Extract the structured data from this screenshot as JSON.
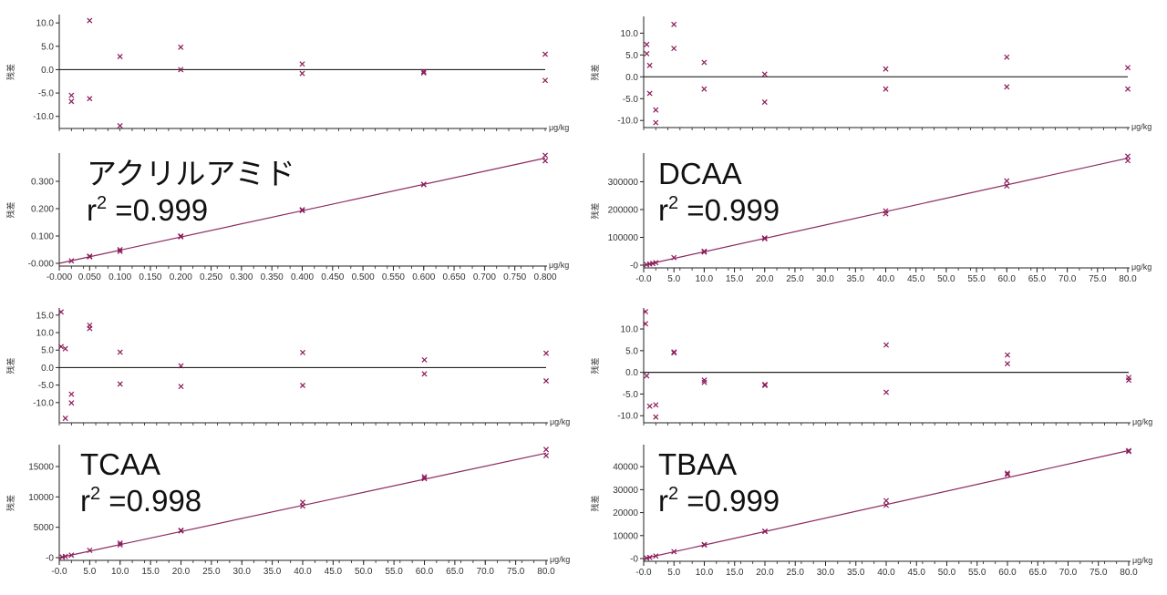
{
  "colors": {
    "marker": "#8B1A5A",
    "line": "#8B2A62",
    "axis": "#222222",
    "zero": "#222222",
    "text": "#111111"
  },
  "chart_data": [
    {
      "id": "acrylamide-residual",
      "type": "scatter",
      "ylabel": "残差",
      "unit_label": "μg/kg",
      "x_ticks": [],
      "y_ticks": [
        "10.0",
        "5.0",
        "0.0",
        "-5.0",
        "-10.0"
      ],
      "y_tick_values": [
        10,
        5,
        0,
        -5,
        -10
      ],
      "xlim": [
        0.0,
        0.8
      ],
      "ylim": [
        -12,
        11
      ],
      "zero_line": true,
      "points": [
        {
          "x": 0.02,
          "y": -5.5
        },
        {
          "x": 0.02,
          "y": -6.8
        },
        {
          "x": 0.05,
          "y": 10.5
        },
        {
          "x": 0.05,
          "y": -6.2
        },
        {
          "x": 0.1,
          "y": 2.8
        },
        {
          "x": 0.1,
          "y": -12.0
        },
        {
          "x": 0.2,
          "y": 4.8
        },
        {
          "x": 0.2,
          "y": 0.0
        },
        {
          "x": 0.4,
          "y": 1.2
        },
        {
          "x": 0.4,
          "y": -0.8
        },
        {
          "x": 0.6,
          "y": -0.4
        },
        {
          "x": 0.6,
          "y": -0.7
        },
        {
          "x": 0.8,
          "y": 3.3
        },
        {
          "x": 0.8,
          "y": -2.3
        }
      ]
    },
    {
      "id": "acrylamide-calibration",
      "type": "scatter",
      "annotation": "アクリルアミド",
      "r2_prefix": "r",
      "r2_sup": "2",
      "r2_value": " =0.999",
      "ylabel": "残差",
      "unit_label": "μg/kg",
      "x_ticks": [
        "-0.000",
        "0.050",
        "0.100",
        "0.150",
        "0.200",
        "0.250",
        "0.300",
        "0.350",
        "0.400",
        "0.450",
        "0.500",
        "0.550",
        "0.600",
        "0.650",
        "0.700",
        "0.750",
        "0.800"
      ],
      "x_tick_values": [
        0,
        0.05,
        0.1,
        0.15,
        0.2,
        0.25,
        0.3,
        0.35,
        0.4,
        0.45,
        0.5,
        0.55,
        0.6,
        0.65,
        0.7,
        0.75,
        0.8
      ],
      "y_ticks": [
        "0.300",
        "0.200",
        "0.100",
        "-0.000"
      ],
      "y_tick_values": [
        0.3,
        0.2,
        0.1,
        0.0
      ],
      "xlim": [
        0.0,
        0.8
      ],
      "ylim": [
        0.0,
        0.39
      ],
      "fit": {
        "x0": 0.0,
        "y0": 0.0,
        "x1": 0.8,
        "y1": 0.385
      },
      "points": [
        {
          "x": 0.02,
          "y": 0.009
        },
        {
          "x": 0.05,
          "y": 0.024
        },
        {
          "x": 0.05,
          "y": 0.026
        },
        {
          "x": 0.1,
          "y": 0.044
        },
        {
          "x": 0.1,
          "y": 0.05
        },
        {
          "x": 0.2,
          "y": 0.097
        },
        {
          "x": 0.2,
          "y": 0.1
        },
        {
          "x": 0.4,
          "y": 0.193
        },
        {
          "x": 0.4,
          "y": 0.196
        },
        {
          "x": 0.6,
          "y": 0.288
        },
        {
          "x": 0.6,
          "y": 0.289
        },
        {
          "x": 0.8,
          "y": 0.395
        },
        {
          "x": 0.8,
          "y": 0.375
        }
      ]
    },
    {
      "id": "dcaa-residual",
      "type": "scatter",
      "ylabel": "残差",
      "unit_label": "μg/kg",
      "x_ticks": [],
      "y_ticks": [
        "10.0",
        "5.0",
        "0.0",
        "-5.0",
        "-10.0"
      ],
      "y_tick_values": [
        10,
        5,
        0,
        -5,
        -10
      ],
      "xlim": [
        0,
        80
      ],
      "ylim": [
        -11,
        13
      ],
      "zero_line": true,
      "points": [
        {
          "x": 0.5,
          "y": 7.4
        },
        {
          "x": 0.5,
          "y": 5.3
        },
        {
          "x": 1,
          "y": 2.6
        },
        {
          "x": 1,
          "y": -3.8
        },
        {
          "x": 2,
          "y": -7.6
        },
        {
          "x": 2,
          "y": -10.5
        },
        {
          "x": 5,
          "y": 12.0
        },
        {
          "x": 5,
          "y": 6.5
        },
        {
          "x": 10,
          "y": 3.3
        },
        {
          "x": 10,
          "y": -2.8
        },
        {
          "x": 20,
          "y": 0.6
        },
        {
          "x": 20,
          "y": -5.8
        },
        {
          "x": 40,
          "y": 1.8
        },
        {
          "x": 40,
          "y": -2.8
        },
        {
          "x": 60,
          "y": 4.5
        },
        {
          "x": 60,
          "y": -2.3
        },
        {
          "x": 80,
          "y": 2.1
        },
        {
          "x": 80,
          "y": -2.8
        }
      ]
    },
    {
      "id": "dcaa-calibration",
      "type": "scatter",
      "annotation": "DCAA",
      "r2_prefix": "r",
      "r2_sup": "2",
      "r2_value": " =0.999",
      "ylabel": "残差",
      "unit_label": "μg/kg",
      "x_ticks": [
        "-0.0",
        "5.0",
        "10.0",
        "15.0",
        "20.0",
        "25.0",
        "30.0",
        "35.0",
        "40.0",
        "45.0",
        "50.0",
        "55.0",
        "60.0",
        "65.0",
        "70.0",
        "75.0",
        "80.0"
      ],
      "x_tick_values": [
        0,
        5,
        10,
        15,
        20,
        25,
        30,
        35,
        40,
        45,
        50,
        55,
        60,
        65,
        70,
        75,
        80
      ],
      "y_ticks": [
        "300000",
        "200000",
        "100000",
        "-0"
      ],
      "y_tick_values": [
        300000,
        200000,
        100000,
        0
      ],
      "xlim": [
        0,
        80
      ],
      "ylim": [
        0,
        390000
      ],
      "fit": {
        "x0": 0,
        "y0": 0,
        "x1": 80,
        "y1": 385000
      },
      "points": [
        {
          "x": 0.5,
          "y": 2000
        },
        {
          "x": 1,
          "y": 4000
        },
        {
          "x": 1.5,
          "y": 6000
        },
        {
          "x": 2,
          "y": 9000
        },
        {
          "x": 5,
          "y": 27000
        },
        {
          "x": 10,
          "y": 50000
        },
        {
          "x": 10,
          "y": 47000
        },
        {
          "x": 20,
          "y": 95000
        },
        {
          "x": 20,
          "y": 98000
        },
        {
          "x": 40,
          "y": 185000
        },
        {
          "x": 40,
          "y": 195000
        },
        {
          "x": 60,
          "y": 285000
        },
        {
          "x": 60,
          "y": 303000
        },
        {
          "x": 80,
          "y": 392000
        },
        {
          "x": 80,
          "y": 376000
        }
      ]
    },
    {
      "id": "tcaa-residual",
      "type": "scatter",
      "ylabel": "残差",
      "unit_label": "μg/kg",
      "x_ticks": [],
      "y_ticks": [
        "15.0",
        "10.0",
        "5.0",
        "0.0",
        "-5.0",
        "-10.0"
      ],
      "y_tick_values": [
        15,
        10,
        5,
        0,
        -5,
        -10
      ],
      "xlim": [
        0,
        80
      ],
      "ylim": [
        -15,
        16
      ],
      "zero_line": true,
      "points": [
        {
          "x": 0.3,
          "y": 15.9
        },
        {
          "x": 0.3,
          "y": 6.0
        },
        {
          "x": 1,
          "y": 5.4
        },
        {
          "x": 1,
          "y": -14.5
        },
        {
          "x": 2,
          "y": -7.6
        },
        {
          "x": 2,
          "y": -10.1
        },
        {
          "x": 5,
          "y": 12.1
        },
        {
          "x": 5,
          "y": 11.2
        },
        {
          "x": 10,
          "y": 4.4
        },
        {
          "x": 10,
          "y": -4.7
        },
        {
          "x": 20,
          "y": 0.5
        },
        {
          "x": 20,
          "y": -5.4
        },
        {
          "x": 40,
          "y": 4.3
        },
        {
          "x": 40,
          "y": -5.1
        },
        {
          "x": 60,
          "y": 2.2
        },
        {
          "x": 60,
          "y": -1.8
        },
        {
          "x": 80,
          "y": 4.1
        },
        {
          "x": 80,
          "y": -3.8
        }
      ]
    },
    {
      "id": "tcaa-calibration",
      "type": "scatter",
      "annotation": "TCAA",
      "r2_prefix": "r",
      "r2_sup": "2",
      "r2_value": " =0.998",
      "ylabel": "残差",
      "unit_label": "μg/kg",
      "x_ticks": [
        "-0.0",
        "5.0",
        "10.0",
        "15.0",
        "20.0",
        "25.0",
        "30.0",
        "35.0",
        "40.0",
        "45.0",
        "50.0",
        "55.0",
        "60.0",
        "65.0",
        "70.0",
        "75.0",
        "80.0"
      ],
      "x_tick_values": [
        0,
        5,
        10,
        15,
        20,
        25,
        30,
        35,
        40,
        45,
        50,
        55,
        60,
        65,
        70,
        75,
        80
      ],
      "y_ticks": [
        "15000",
        "10000",
        "5000",
        "-0"
      ],
      "y_tick_values": [
        15000,
        10000,
        5000,
        0
      ],
      "xlim": [
        0,
        80
      ],
      "ylim": [
        0,
        18000
      ],
      "fit": {
        "x0": 0,
        "y0": 0,
        "x1": 80,
        "y1": 17200
      },
      "points": [
        {
          "x": 0.5,
          "y": 100
        },
        {
          "x": 1,
          "y": 200
        },
        {
          "x": 2,
          "y": 400
        },
        {
          "x": 5,
          "y": 1200
        },
        {
          "x": 10,
          "y": 2100
        },
        {
          "x": 10,
          "y": 2400
        },
        {
          "x": 20,
          "y": 4400
        },
        {
          "x": 20,
          "y": 4500
        },
        {
          "x": 40,
          "y": 8500
        },
        {
          "x": 40,
          "y": 9100
        },
        {
          "x": 60,
          "y": 13000
        },
        {
          "x": 60,
          "y": 13300
        },
        {
          "x": 80,
          "y": 17800
        },
        {
          "x": 80,
          "y": 16800
        }
      ]
    },
    {
      "id": "tbaa-residual",
      "type": "scatter",
      "ylabel": "残差",
      "unit_label": "μg/kg",
      "x_ticks": [],
      "y_ticks": [
        "10.0",
        "5.0",
        "0.0",
        "-5.0",
        "-10.0"
      ],
      "y_tick_values": [
        10,
        5,
        0,
        -5,
        -10
      ],
      "xlim": [
        0,
        80
      ],
      "ylim": [
        -11,
        14
      ],
      "zero_line": true,
      "points": [
        {
          "x": 0.3,
          "y": 14.0
        },
        {
          "x": 0.3,
          "y": 11.2
        },
        {
          "x": 0.5,
          "y": -0.8
        },
        {
          "x": 1,
          "y": -7.8
        },
        {
          "x": 2,
          "y": -7.5
        },
        {
          "x": 2,
          "y": -10.3
        },
        {
          "x": 5,
          "y": 4.7
        },
        {
          "x": 5,
          "y": 4.5
        },
        {
          "x": 10,
          "y": -1.8
        },
        {
          "x": 10,
          "y": -2.3
        },
        {
          "x": 20,
          "y": -2.8
        },
        {
          "x": 20,
          "y": -3.0
        },
        {
          "x": 40,
          "y": 6.3
        },
        {
          "x": 40,
          "y": -4.6
        },
        {
          "x": 60,
          "y": 4.0
        },
        {
          "x": 60,
          "y": 2.0
        },
        {
          "x": 80,
          "y": -1.2
        },
        {
          "x": 80,
          "y": -1.8
        }
      ]
    },
    {
      "id": "tbaa-calibration",
      "type": "scatter",
      "annotation": "TBAA",
      "r2_prefix": "r",
      "r2_sup": "2",
      "r2_value": " =0.999",
      "ylabel": "残差",
      "unit_label": "μg/kg",
      "x_ticks": [
        "-0.0",
        "5.0",
        "10.0",
        "15.0",
        "20.0",
        "25.0",
        "30.0",
        "35.0",
        "40.0",
        "45.0",
        "50.0",
        "55.0",
        "60.0",
        "65.0",
        "70.0",
        "75.0",
        "80.0"
      ],
      "x_tick_values": [
        0,
        5,
        10,
        15,
        20,
        25,
        30,
        35,
        40,
        45,
        50,
        55,
        60,
        65,
        70,
        75,
        80
      ],
      "y_ticks": [
        "40000",
        "30000",
        "20000",
        "10000",
        "-0"
      ],
      "y_tick_values": [
        40000,
        30000,
        20000,
        10000,
        0
      ],
      "xlim": [
        0,
        80
      ],
      "ylim": [
        0,
        48000
      ],
      "fit": {
        "x0": 0,
        "y0": 0,
        "x1": 80,
        "y1": 47000
      },
      "points": [
        {
          "x": 0.5,
          "y": 200
        },
        {
          "x": 1,
          "y": 500
        },
        {
          "x": 2,
          "y": 1100
        },
        {
          "x": 5,
          "y": 3000
        },
        {
          "x": 10,
          "y": 5900
        },
        {
          "x": 10,
          "y": 6100
        },
        {
          "x": 20,
          "y": 11800
        },
        {
          "x": 20,
          "y": 11900
        },
        {
          "x": 40,
          "y": 23200
        },
        {
          "x": 40,
          "y": 25200
        },
        {
          "x": 60,
          "y": 36600
        },
        {
          "x": 60,
          "y": 37200
        },
        {
          "x": 80,
          "y": 47000
        },
        {
          "x": 80,
          "y": 46600
        }
      ]
    }
  ]
}
